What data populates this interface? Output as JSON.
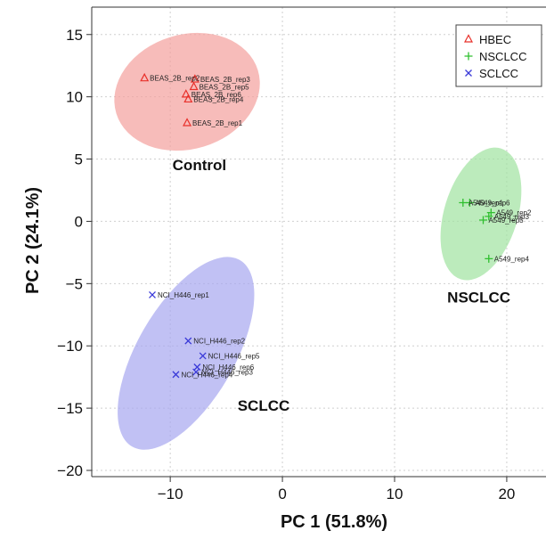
{
  "chart_data": {
    "type": "scatter",
    "title": "",
    "xlabel": "PC 1 (51.8%)",
    "ylabel": "PC 2 (24.1%)",
    "xlim": [
      -17,
      23.5
    ],
    "ylim": [
      -20.5,
      17.2
    ],
    "xticks": [
      -10,
      0,
      10,
      20
    ],
    "yticks": [
      -20,
      -15,
      -10,
      -5,
      0,
      5,
      10,
      15
    ],
    "xtick_labels": [
      "−10",
      "0",
      "10",
      "20"
    ],
    "ytick_labels": [
      "−20",
      "−15",
      "−10",
      "−5",
      "0",
      "5",
      "10",
      "15"
    ],
    "grid": true,
    "legend_position": "top-right",
    "series": [
      {
        "name": "HBEC",
        "marker": "triangle",
        "color": "#e8302a",
        "ellipse_color": "#f4a09c",
        "points": [
          {
            "x": -12.3,
            "y": 11.5,
            "label": "BEAS_2B_rep2"
          },
          {
            "x": -7.8,
            "y": 11.4,
            "label": "BEAS_2B_rep3"
          },
          {
            "x": -7.9,
            "y": 10.8,
            "label": "BEAS_2B_rep5"
          },
          {
            "x": -8.6,
            "y": 10.2,
            "label": "BEAS_2B_rep6"
          },
          {
            "x": -8.4,
            "y": 9.8,
            "label": "BEAS_2B_rep4"
          },
          {
            "x": -8.5,
            "y": 7.9,
            "label": "BEAS_2B_rep1"
          }
        ]
      },
      {
        "name": "NSCLCC",
        "marker": "plus",
        "color": "#2fbf2f",
        "ellipse_color": "#9fe39f",
        "points": [
          {
            "x": 16.1,
            "y": 1.5,
            "label": "A549_rep1"
          },
          {
            "x": 16.7,
            "y": 1.5,
            "label": "A549_rep6"
          },
          {
            "x": 18.6,
            "y": 0.7,
            "label": "A549_rep2"
          },
          {
            "x": 18.4,
            "y": 0.4,
            "label": "A549_rep3"
          },
          {
            "x": 17.9,
            "y": 0.1,
            "label": "A549_rep5"
          },
          {
            "x": 18.4,
            "y": -3.0,
            "label": "A549_rep4"
          }
        ]
      },
      {
        "name": "SCLCC",
        "marker": "x",
        "color": "#3a3ad8",
        "ellipse_color": "#a7a7ef",
        "points": [
          {
            "x": -11.6,
            "y": -5.9,
            "label": "NCI_H446_rep1"
          },
          {
            "x": -8.4,
            "y": -9.6,
            "label": "NCI_H446_rep2"
          },
          {
            "x": -7.1,
            "y": -10.8,
            "label": "NCI_H446_rep5"
          },
          {
            "x": -7.6,
            "y": -11.7,
            "label": "NCI_H446_rep6"
          },
          {
            "x": -7.7,
            "y": -12.1,
            "label": "NCI_H446_rep3"
          },
          {
            "x": -9.5,
            "y": -12.3,
            "label": "NCI_H446_rep4"
          }
        ]
      }
    ],
    "group_labels": [
      {
        "text": "Control",
        "x": -9.8,
        "y": 4.1
      },
      {
        "text": "NSCLCC",
        "x": 14.7,
        "y": -6.5
      },
      {
        "text": "SCLCC",
        "x": -4,
        "y": -15.2
      }
    ],
    "ellipses": [
      {
        "group": "HBEC",
        "cx": -8.5,
        "cy": 10.4,
        "rx": 6.6,
        "ry": 4.6,
        "angle": -17
      },
      {
        "group": "NSCLCC",
        "cx": 17.7,
        "cy": 0.6,
        "rx": 6.1,
        "ry": 2.95,
        "angle": -73
      },
      {
        "group": "SCLCC",
        "cx": -8.6,
        "cy": -10.6,
        "rx": 9.6,
        "ry": 3.9,
        "angle": -60
      }
    ]
  }
}
